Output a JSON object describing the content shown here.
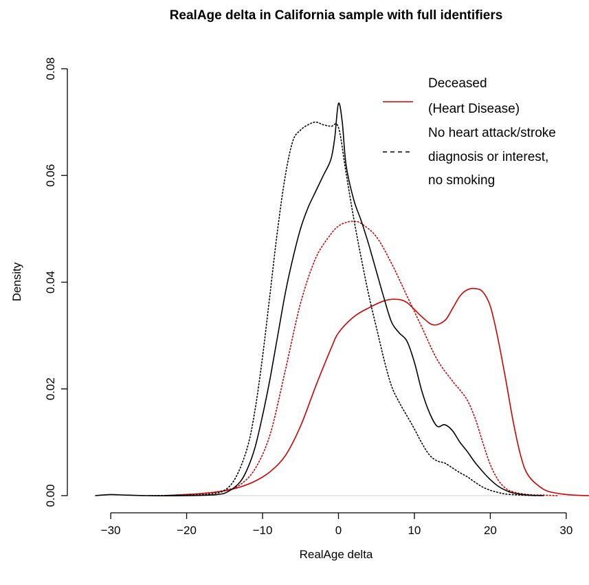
{
  "chart_data": {
    "type": "line",
    "title": "RealAge delta in California sample with full identifiers",
    "xlabel": "RealAge delta",
    "ylabel": "Density",
    "xlim": [
      -32,
      33
    ],
    "ylim": [
      0,
      0.08
    ],
    "x_ticks": [
      -30,
      -20,
      -10,
      0,
      10,
      20,
      30
    ],
    "x_tick_labels": [
      "−30",
      "−20",
      "−10",
      "0",
      "10",
      "20",
      "30"
    ],
    "y_ticks": [
      0,
      0.02,
      0.04,
      0.06,
      0.08
    ],
    "y_tick_labels": [
      "0.00",
      "0.02",
      "0.04",
      "0.06",
      "0.08"
    ],
    "grid": false,
    "baseline": true,
    "legend_position": "top-right",
    "legend": [
      {
        "label_lines": [
          "Deceased",
          "(Heart Disease)"
        ],
        "color": "#cc0000",
        "style": "solid"
      },
      {
        "label_lines": [
          "No heart attack/stroke",
          "diagnosis or interest,",
          "no smoking"
        ],
        "color": "#000000",
        "style": "dashed"
      }
    ],
    "series": [
      {
        "color": "#cc0000",
        "style": "solid",
        "x": [
          -23,
          -18,
          -15,
          -13,
          -11,
          -9,
          -7,
          -5,
          -3,
          -1,
          0,
          2,
          4,
          6,
          7.5,
          9,
          11,
          12.5,
          14,
          15,
          16,
          17,
          18,
          19,
          20,
          21,
          22,
          23,
          24,
          25,
          27,
          29,
          31,
          33
        ],
        "y": [
          0,
          0.0004,
          0.0009,
          0.0016,
          0.0027,
          0.0045,
          0.0075,
          0.013,
          0.0205,
          0.0275,
          0.0305,
          0.0335,
          0.0352,
          0.0365,
          0.0368,
          0.0362,
          0.0335,
          0.032,
          0.0328,
          0.035,
          0.0374,
          0.0386,
          0.0388,
          0.0382,
          0.0355,
          0.0295,
          0.022,
          0.014,
          0.0075,
          0.0038,
          0.0012,
          0.0004,
          0.0001,
          0
        ]
      },
      {
        "color": "#cc0000",
        "style": "dotted",
        "x": [
          -23,
          -18,
          -15,
          -13,
          -11,
          -9,
          -7,
          -5,
          -3,
          -1,
          0,
          1,
          2,
          3,
          5,
          7,
          9,
          11,
          13,
          15,
          16,
          17,
          18,
          19,
          20,
          21,
          22,
          23,
          25,
          27,
          29
        ],
        "y": [
          0,
          0.0004,
          0.001,
          0.002,
          0.005,
          0.0115,
          0.0235,
          0.036,
          0.0445,
          0.049,
          0.0505,
          0.0512,
          0.0514,
          0.051,
          0.0485,
          0.0435,
          0.0375,
          0.0315,
          0.0255,
          0.0215,
          0.0198,
          0.0178,
          0.0145,
          0.01,
          0.0058,
          0.003,
          0.0014,
          0.0007,
          0.0002,
          0.0001,
          0
        ]
      },
      {
        "color": "#000000",
        "style": "solid",
        "x": [
          -32,
          -30,
          -28,
          -25,
          -20,
          -16,
          -14.5,
          -13,
          -12,
          -11,
          -10,
          -9,
          -8,
          -7,
          -6,
          -5,
          -4,
          -3,
          -2,
          -1,
          -0.5,
          0,
          0.5,
          1,
          2,
          3,
          4,
          5,
          6,
          7,
          8,
          9,
          10,
          11,
          12,
          13,
          14,
          15,
          16,
          17,
          18,
          19,
          20,
          21,
          22,
          23,
          25,
          27
        ],
        "y": [
          0,
          0.0002,
          0.0001,
          0,
          0,
          0.0002,
          0.0008,
          0.0025,
          0.005,
          0.009,
          0.015,
          0.022,
          0.03,
          0.038,
          0.0445,
          0.05,
          0.054,
          0.057,
          0.06,
          0.063,
          0.067,
          0.0735,
          0.07,
          0.062,
          0.0555,
          0.0515,
          0.047,
          0.042,
          0.037,
          0.0325,
          0.0305,
          0.029,
          0.025,
          0.0195,
          0.0155,
          0.013,
          0.0133,
          0.0122,
          0.01,
          0.0082,
          0.0062,
          0.0045,
          0.003,
          0.0018,
          0.001,
          0.0005,
          0.0001,
          0
        ]
      },
      {
        "color": "#000000",
        "style": "dotted",
        "x": [
          -25,
          -20,
          -17,
          -15,
          -13.5,
          -12,
          -11,
          -10,
          -9,
          -8,
          -7,
          -6,
          -5,
          -4,
          -3,
          -2,
          -1,
          0,
          1,
          2,
          3,
          4,
          5,
          6,
          7,
          8,
          9,
          10,
          11,
          12,
          13,
          14,
          15,
          16,
          17,
          18,
          19,
          20,
          21,
          22,
          24,
          26
        ],
        "y": [
          0,
          0.0001,
          0.0003,
          0.001,
          0.0035,
          0.009,
          0.016,
          0.026,
          0.038,
          0.05,
          0.06,
          0.0665,
          0.0685,
          0.0695,
          0.07,
          0.0695,
          0.0692,
          0.069,
          0.0605,
          0.052,
          0.0445,
          0.0375,
          0.0315,
          0.0255,
          0.0205,
          0.0175,
          0.015,
          0.0125,
          0.0098,
          0.0076,
          0.0065,
          0.0061,
          0.0052,
          0.0043,
          0.0035,
          0.0025,
          0.0016,
          0.001,
          0.0006,
          0.0003,
          0.0001,
          0
        ]
      }
    ]
  }
}
